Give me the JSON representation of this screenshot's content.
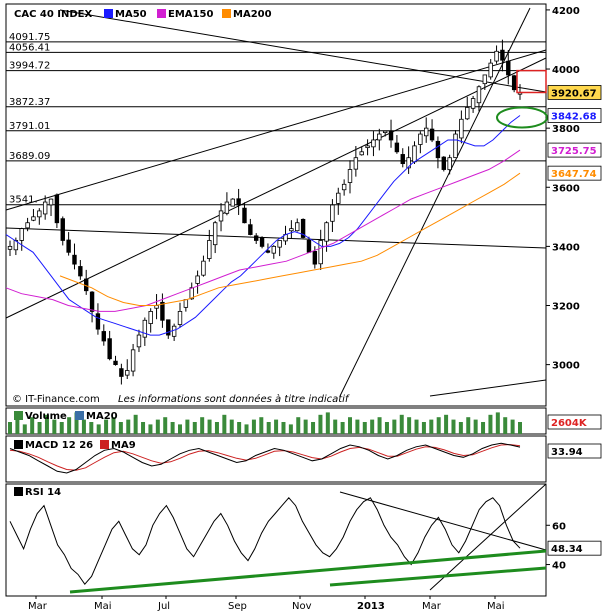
{
  "colors": {
    "background": "#ffffff",
    "frame": "#000000",
    "candle": "#000000",
    "candle_up": "#2e8b2e",
    "ma50": "#1a1aff",
    "ema150": "#d11fd1",
    "ma200": "#ff8c00",
    "volume_bar": "#3a8a3a",
    "macd": "#000000",
    "macd_signal": "#cc2222",
    "rsi": "#000000",
    "trend_green": "#1e8c1e",
    "price_box_fill": "#ffd84d",
    "highlight_red": "#dd2222",
    "highlight_green": "#1e8c1e"
  },
  "legend": {
    "main": [
      {
        "label": "CAC 40 INDEX",
        "swatch": null
      },
      {
        "label": "MA50",
        "swatch": "#1a1aff"
      },
      {
        "label": "EMA150",
        "swatch": "#d11fd1"
      },
      {
        "label": "MA200",
        "swatch": "#ff8c00"
      }
    ],
    "volume": [
      {
        "label": "Volume",
        "swatch": "#3a8a3a"
      },
      {
        "label": "MA20",
        "swatch": "#3a6ea5"
      }
    ],
    "macd": [
      {
        "label": "MACD 12 26",
        "swatch": "#000000"
      },
      {
        "label": "MA9",
        "swatch": "#cc2222"
      }
    ],
    "rsi": [
      {
        "label": "RSI 14",
        "swatch": "#000000"
      }
    ]
  },
  "footer_text": "© IT-Finance.com",
  "disclaimer": "Les informations sont données à titre indicatif",
  "chart_data": [
    {
      "type": "candlestick",
      "panel": "price",
      "title": "CAC 40 INDEX",
      "y_ticks": [
        3000,
        3200,
        3400,
        3600,
        3800,
        4000,
        4200
      ],
      "ylim": [
        2860,
        4220
      ],
      "horizontal_levels": [
        {
          "label": "4091.75",
          "value": 4091.75
        },
        {
          "label": "4056.41",
          "value": 4056.41
        },
        {
          "label": "3994.72",
          "value": 3994.72
        },
        {
          "label": "3872.37",
          "value": 3872.37
        },
        {
          "label": "3791.01",
          "value": 3791.01
        },
        {
          "label": "3689.09",
          "value": 3689.09
        },
        {
          "label": "3541.",
          "value": 3541
        }
      ],
      "last_values": [
        {
          "label": "3920.67",
          "value": 3920.67,
          "series": "price",
          "color": "#ffd84d",
          "text_color": "#000000"
        },
        {
          "label": "3842.68",
          "value": 3842.68,
          "series": "MA50",
          "color": "#ffffff",
          "text_color": "#1a1aff"
        },
        {
          "label": "3725.75",
          "value": 3725.75,
          "series": "EMA150",
          "color": "#ffffff",
          "text_color": "#d11fd1"
        },
        {
          "label": "3647.74",
          "value": 3647.74,
          "series": "MA200",
          "color": "#ffffff",
          "text_color": "#ff8c00"
        }
      ],
      "series_points_note": "approximate path of the index and its moving averages, read from the chart",
      "price_path": [
        3400,
        3420,
        3460,
        3480,
        3500,
        3520,
        3550,
        3560,
        3480,
        3420,
        3380,
        3340,
        3300,
        3250,
        3180,
        3120,
        3080,
        3020,
        3000,
        2960,
        2980,
        3050,
        3100,
        3150,
        3180,
        3200,
        3150,
        3100,
        3130,
        3180,
        3220,
        3260,
        3300,
        3350,
        3420,
        3480,
        3520,
        3550,
        3560,
        3540,
        3480,
        3440,
        3420,
        3400,
        3380,
        3400,
        3420,
        3440,
        3460,
        3480,
        3430,
        3380,
        3340,
        3420,
        3480,
        3540,
        3580,
        3610,
        3660,
        3700,
        3720,
        3740,
        3760,
        3780,
        3790,
        3760,
        3720,
        3680,
        3700,
        3740,
        3780,
        3800,
        3760,
        3700,
        3660,
        3700,
        3780,
        3830,
        3870,
        3900,
        3940,
        3980,
        4020,
        4060,
        4030,
        3980,
        3930,
        3920
      ],
      "ma50_path": [
        3440,
        3420,
        3400,
        3380,
        3340,
        3300,
        3260,
        3220,
        3200,
        3180,
        3160,
        3150,
        3140,
        3130,
        3120,
        3110,
        3100,
        3100,
        3110,
        3120,
        3140,
        3160,
        3190,
        3220,
        3250,
        3280,
        3300,
        3330,
        3360,
        3390,
        3420,
        3440,
        3450,
        3440,
        3420,
        3400,
        3400,
        3410,
        3430,
        3460,
        3500,
        3540,
        3580,
        3620,
        3650,
        3680,
        3700,
        3720,
        3740,
        3760,
        3760,
        3750,
        3740,
        3740,
        3760,
        3790,
        3820,
        3842.68
      ],
      "ema150_path": [
        3260,
        3240,
        3230,
        3220,
        3200,
        3190,
        3180,
        3180,
        3190,
        3200,
        3220,
        3240,
        3260,
        3280,
        3300,
        3320,
        3330,
        3340,
        3350,
        3370,
        3390,
        3410,
        3440,
        3470,
        3500,
        3530,
        3560,
        3580,
        3600,
        3620,
        3640,
        3660,
        3690,
        3725.75
      ],
      "ma200_path": [
        3300,
        3280,
        3260,
        3230,
        3210,
        3200,
        3200,
        3210,
        3220,
        3240,
        3260,
        3270,
        3280,
        3290,
        3300,
        3310,
        3320,
        3330,
        3340,
        3350,
        3370,
        3400,
        3430,
        3460,
        3490,
        3520,
        3550,
        3580,
        3610,
        3647.74
      ]
    },
    {
      "type": "bar",
      "panel": "volume",
      "title": "Volume",
      "last_value": "2604K",
      "bars_note": "daily volume bars",
      "values": [
        0.5,
        0.6,
        0.4,
        0.7,
        0.5,
        0.8,
        0.6,
        0.5,
        0.7,
        0.9,
        0.6,
        0.5,
        0.4,
        0.6,
        0.7,
        0.5,
        0.6,
        0.8,
        0.5,
        0.4,
        0.6,
        0.7,
        0.5,
        0.4,
        0.6,
        0.5,
        0.7,
        0.6,
        0.5,
        0.8,
        0.6,
        0.5,
        0.4,
        0.6,
        0.7,
        0.5,
        0.6,
        0.5,
        0.4,
        0.7,
        0.6,
        0.5,
        0.8,
        0.9,
        0.6,
        0.5,
        0.7,
        0.6,
        0.5,
        0.6,
        0.7,
        0.5,
        0.6,
        0.8,
        0.7,
        0.6,
        0.5,
        0.6,
        0.7,
        0.8,
        0.6,
        0.5,
        0.7,
        0.6,
        0.5,
        0.8,
        0.9,
        0.7,
        0.6,
        0.5
      ]
    },
    {
      "type": "line",
      "panel": "macd",
      "title": "MACD 12 26",
      "last_value": "33.94",
      "macd_path": [
        30,
        20,
        10,
        -5,
        -20,
        -35,
        -40,
        -30,
        -10,
        10,
        25,
        30,
        20,
        5,
        -10,
        -20,
        -15,
        0,
        15,
        25,
        30,
        20,
        10,
        0,
        -10,
        -5,
        10,
        20,
        30,
        25,
        15,
        5,
        -5,
        0,
        15,
        30,
        40,
        35,
        25,
        10,
        0,
        10,
        25,
        35,
        40,
        30,
        20,
        10,
        5,
        15,
        30,
        40,
        45,
        40,
        33.94
      ],
      "signal_path": [
        25,
        22,
        15,
        5,
        -8,
        -20,
        -30,
        -32,
        -25,
        -10,
        5,
        18,
        22,
        15,
        5,
        -5,
        -12,
        -8,
        2,
        14,
        22,
        24,
        18,
        10,
        2,
        -3,
        2,
        12,
        22,
        24,
        20,
        12,
        4,
        0,
        8,
        20,
        30,
        33,
        28,
        18,
        8,
        8,
        18,
        28,
        35,
        33,
        26,
        16,
        10,
        12,
        22,
        32,
        40,
        41,
        38
      ]
    },
    {
      "type": "line",
      "panel": "rsi",
      "title": "RSI 14",
      "y_ticks": [
        40,
        60
      ],
      "ylim": [
        25,
        80
      ],
      "last_value": "48.34",
      "rsi_path": [
        62,
        55,
        48,
        58,
        66,
        70,
        60,
        50,
        45,
        38,
        35,
        30,
        34,
        42,
        50,
        58,
        62,
        55,
        48,
        45,
        50,
        60,
        66,
        70,
        64,
        56,
        48,
        44,
        50,
        56,
        62,
        66,
        60,
        52,
        46,
        42,
        48,
        56,
        62,
        66,
        70,
        74,
        70,
        62,
        56,
        50,
        46,
        44,
        48,
        54,
        62,
        68,
        72,
        74,
        68,
        60,
        54,
        50,
        44,
        40,
        46,
        54,
        60,
        64,
        58,
        50,
        46,
        52,
        60,
        68,
        72,
        74,
        70,
        60,
        52,
        48.34
      ],
      "trendlines_note": "green rising support lines and black trend lines"
    }
  ],
  "x_axis": {
    "labels": [
      "Mar",
      "Mai",
      "Jul",
      "Sep",
      "Nov",
      "2013",
      "Mar",
      "Mai"
    ]
  }
}
